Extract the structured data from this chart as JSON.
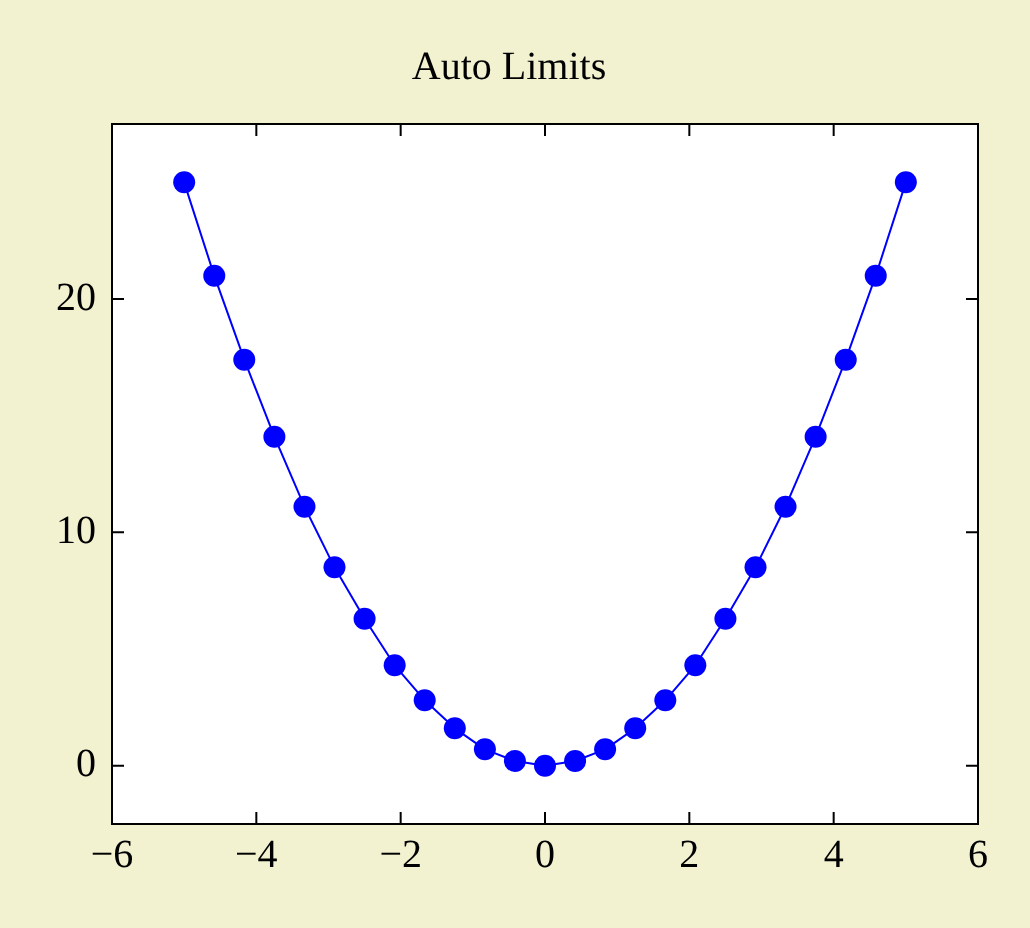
{
  "chart_data": {
    "type": "line",
    "title": "Auto Limits",
    "x": [
      -5,
      -4.583,
      -4.167,
      -3.75,
      -3.333,
      -2.917,
      -2.5,
      -2.083,
      -1.667,
      -1.25,
      -0.833,
      -0.417,
      0,
      0.417,
      0.833,
      1.25,
      1.667,
      2.083,
      2.5,
      2.917,
      3.333,
      3.75,
      4.167,
      4.583,
      5
    ],
    "series": [
      {
        "color": "#0000ff",
        "values": [
          25,
          21.0,
          17.4,
          14.1,
          11.1,
          8.5,
          6.3,
          4.3,
          2.8,
          1.6,
          0.7,
          0.2,
          0,
          0.2,
          0.7,
          1.6,
          2.8,
          4.3,
          6.3,
          8.5,
          11.1,
          14.1,
          17.4,
          21.0,
          25
        ]
      }
    ],
    "xlim": [
      -6,
      6
    ],
    "xticks": [
      {
        "value": -6,
        "label": "−6"
      },
      {
        "value": -4,
        "label": "−4"
      },
      {
        "value": -2,
        "label": "−2"
      },
      0,
      2,
      4,
      6
    ],
    "ylim": [
      -2.5,
      27.5
    ],
    "yticks": [
      0,
      10,
      20
    ],
    "grid": false,
    "legend": false,
    "marker": "circle",
    "line_style": "solid"
  }
}
